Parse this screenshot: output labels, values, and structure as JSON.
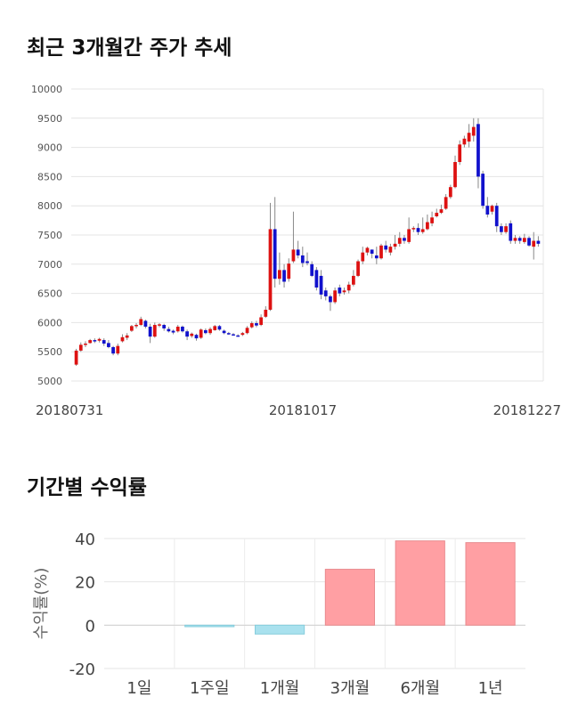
{
  "section1": {
    "title": "최근 3개월간 주가 추세"
  },
  "section2": {
    "title": "기간별 수익률"
  },
  "chart_data": [
    {
      "type": "candlestick",
      "ylim": [
        5000,
        10000
      ],
      "yticks": [
        5000,
        5500,
        6000,
        6500,
        7000,
        7500,
        8000,
        8500,
        9000,
        9500,
        10000
      ],
      "date_labels": [
        "20180731",
        "20181017",
        "20181227"
      ],
      "colors": {
        "up": "#dd1111",
        "down": "#1111cc",
        "wick": "#888888"
      },
      "candles": [
        [
          5280,
          5520,
          5260,
          5550
        ],
        [
          5520,
          5620,
          5500,
          5660
        ],
        [
          5620,
          5640,
          5580,
          5680
        ],
        [
          5650,
          5700,
          5640,
          5720
        ],
        [
          5700,
          5690,
          5650,
          5730
        ],
        [
          5690,
          5720,
          5660,
          5740
        ],
        [
          5700,
          5640,
          5600,
          5730
        ],
        [
          5650,
          5580,
          5560,
          5700
        ],
        [
          5580,
          5470,
          5440,
          5600
        ],
        [
          5470,
          5600,
          5440,
          5640
        ],
        [
          5680,
          5750,
          5660,
          5800
        ],
        [
          5740,
          5780,
          5700,
          5820
        ],
        [
          5860,
          5940,
          5840,
          5960
        ],
        [
          5940,
          5960,
          5900,
          5990
        ],
        [
          5960,
          6060,
          5940,
          6100
        ],
        [
          6030,
          5930,
          5900,
          6050
        ],
        [
          5930,
          5760,
          5650,
          5980
        ],
        [
          5760,
          5960,
          5740,
          6000
        ],
        [
          5960,
          5970,
          5920,
          5990
        ],
        [
          5960,
          5900,
          5860,
          5980
        ],
        [
          5890,
          5850,
          5830,
          5930
        ],
        [
          5860,
          5830,
          5800,
          5880
        ],
        [
          5850,
          5930,
          5830,
          5960
        ],
        [
          5930,
          5850,
          5830,
          5950
        ],
        [
          5850,
          5760,
          5700,
          5880
        ],
        [
          5770,
          5810,
          5740,
          5830
        ],
        [
          5790,
          5730,
          5690,
          5810
        ],
        [
          5740,
          5880,
          5720,
          5900
        ],
        [
          5870,
          5820,
          5800,
          5900
        ],
        [
          5820,
          5890,
          5790,
          5920
        ],
        [
          5870,
          5940,
          5860,
          5960
        ],
        [
          5940,
          5880,
          5860,
          5960
        ],
        [
          5860,
          5820,
          5800,
          5880
        ],
        [
          5820,
          5800,
          5790,
          5840
        ],
        [
          5800,
          5790,
          5780,
          5820
        ],
        [
          5780,
          5770,
          5760,
          5800
        ],
        [
          5790,
          5820,
          5770,
          5840
        ],
        [
          5820,
          5910,
          5800,
          5940
        ],
        [
          5920,
          5990,
          5900,
          6020
        ],
        [
          5990,
          5950,
          5920,
          6030
        ],
        [
          5960,
          6090,
          5940,
          6140
        ],
        [
          6100,
          6220,
          6080,
          6280
        ],
        [
          6220,
          7600,
          6200,
          8050
        ],
        [
          7600,
          6750,
          6600,
          8150
        ],
        [
          6750,
          6900,
          6650,
          7200
        ],
        [
          6900,
          6700,
          6600,
          7000
        ],
        [
          6750,
          7010,
          6700,
          7100
        ],
        [
          7050,
          7250,
          7020,
          7900
        ],
        [
          7250,
          7150,
          7100,
          7400
        ],
        [
          7150,
          7020,
          6950,
          7300
        ],
        [
          7050,
          7020,
          6980,
          7200
        ],
        [
          7000,
          6800,
          6780,
          7050
        ],
        [
          6900,
          6600,
          6550,
          6950
        ],
        [
          6800,
          6480,
          6400,
          6900
        ],
        [
          6550,
          6450,
          6380,
          6600
        ],
        [
          6450,
          6350,
          6200,
          6480
        ],
        [
          6350,
          6550,
          6320,
          6600
        ],
        [
          6600,
          6500,
          6450,
          6650
        ],
        [
          6520,
          6550,
          6480,
          6600
        ],
        [
          6550,
          6650,
          6500,
          6700
        ],
        [
          6650,
          6800,
          6620,
          6900
        ],
        [
          6800,
          7050,
          6780,
          7080
        ],
        [
          7050,
          7200,
          7000,
          7300
        ],
        [
          7200,
          7280,
          7150,
          7300
        ],
        [
          7250,
          7180,
          7100,
          7250
        ],
        [
          7150,
          7100,
          7000,
          7300
        ],
        [
          7100,
          7320,
          7080,
          7350
        ],
        [
          7320,
          7250,
          7200,
          7400
        ],
        [
          7200,
          7300,
          7150,
          7350
        ],
        [
          7300,
          7350,
          7250,
          7500
        ],
        [
          7350,
          7450,
          7300,
          7550
        ],
        [
          7450,
          7400,
          7350,
          7500
        ],
        [
          7380,
          7600,
          7350,
          7800
        ],
        [
          7600,
          7620,
          7550,
          7650
        ],
        [
          7620,
          7550,
          7500,
          7700
        ],
        [
          7550,
          7600,
          7520,
          7800
        ],
        [
          7600,
          7720,
          7580,
          7850
        ],
        [
          7700,
          7800,
          7650,
          7900
        ],
        [
          7820,
          7880,
          7800,
          7950
        ],
        [
          7880,
          7940,
          7860,
          8020
        ],
        [
          7950,
          8150,
          7930,
          8200
        ],
        [
          8150,
          8320,
          8120,
          8360
        ],
        [
          8320,
          8750,
          8300,
          8860
        ],
        [
          8750,
          9050,
          8700,
          9120
        ],
        [
          9050,
          9150,
          9000,
          9200
        ],
        [
          9100,
          9250,
          9000,
          9400
        ],
        [
          9200,
          9350,
          9100,
          9500
        ],
        [
          9400,
          8500,
          8300,
          9500
        ],
        [
          8550,
          8000,
          7950,
          8600
        ],
        [
          8000,
          7850,
          7800,
          8150
        ],
        [
          7900,
          8000,
          7850,
          8020
        ],
        [
          8000,
          7650,
          7550,
          8050
        ],
        [
          7650,
          7550,
          7500,
          7700
        ],
        [
          7550,
          7650,
          7520,
          7700
        ],
        [
          7700,
          7400,
          7350,
          7750
        ],
        [
          7400,
          7450,
          7350,
          7500
        ],
        [
          7450,
          7400,
          7350,
          7480
        ],
        [
          7380,
          7450,
          7350,
          7520
        ],
        [
          7450,
          7320,
          7300,
          7480
        ],
        [
          7300,
          7400,
          7080,
          7550
        ],
        [
          7400,
          7350,
          7300,
          7480
        ]
      ]
    },
    {
      "type": "bar",
      "categories": [
        "1일",
        "1주일",
        "1개월",
        "3개월",
        "6개월",
        "1년"
      ],
      "values": [
        0,
        -0.7,
        -4.1,
        25.8,
        38.9,
        38.1
      ],
      "ylim": [
        -20,
        40
      ],
      "yticks": [
        -20,
        0,
        20,
        40
      ],
      "ylabel": "수익률(%)",
      "colors": {
        "positive": "#ff9fa3",
        "positive_edge": "#e88a8e",
        "negative": "#a9e1ee",
        "negative_edge": "#86cddc"
      }
    }
  ]
}
